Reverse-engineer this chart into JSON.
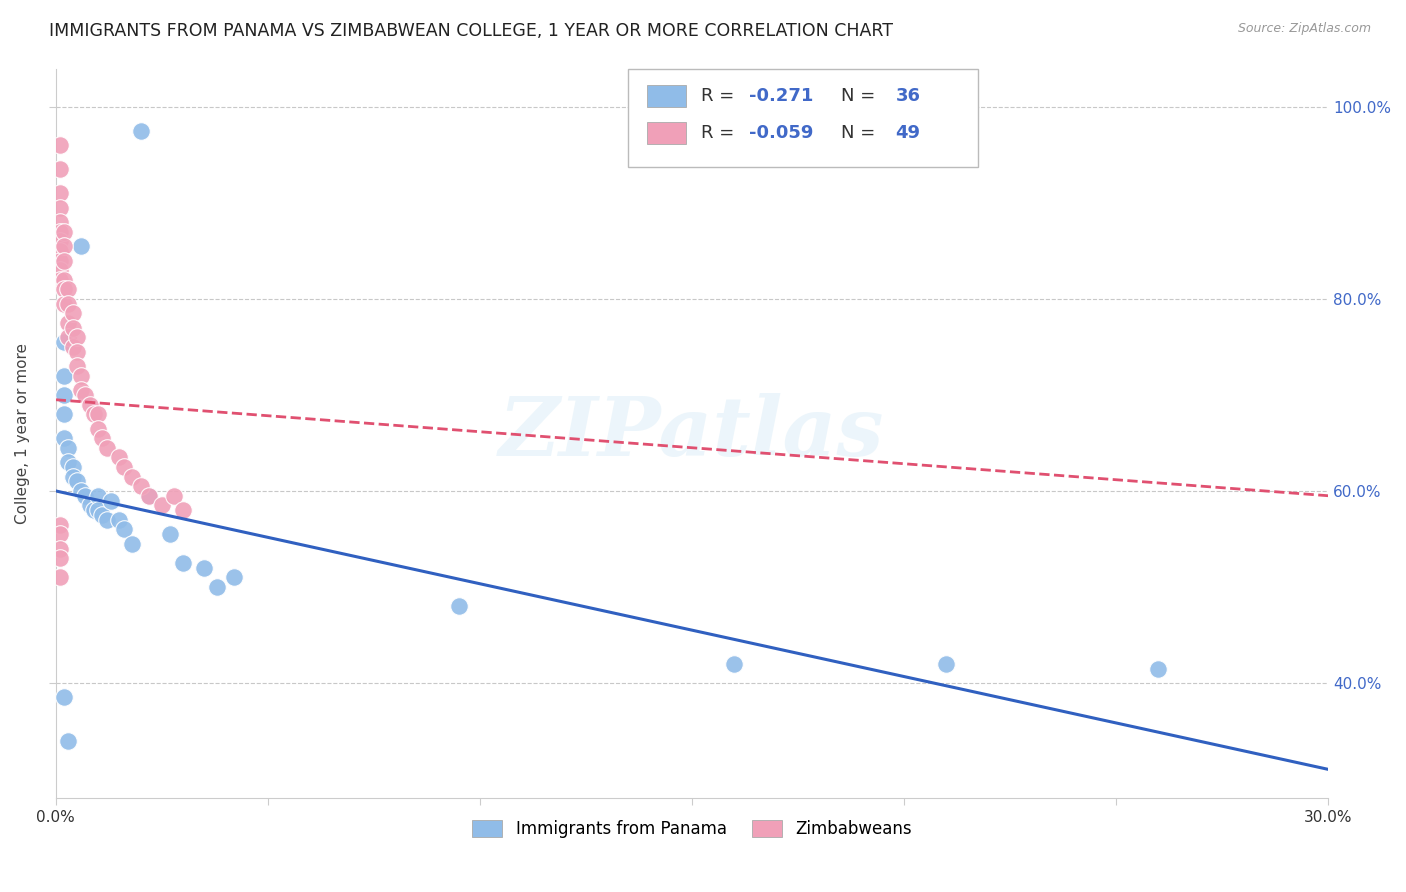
{
  "title": "IMMIGRANTS FROM PANAMA VS ZIMBABWEAN COLLEGE, 1 YEAR OR MORE CORRELATION CHART",
  "source": "Source: ZipAtlas.com",
  "ylabel": "College, 1 year or more",
  "xmin": 0.0,
  "xmax": 0.3,
  "ymin": 0.28,
  "ymax": 1.04,
  "xticks": [
    0.0,
    0.05,
    0.1,
    0.15,
    0.2,
    0.25,
    0.3
  ],
  "xtick_labels": [
    "0.0%",
    "",
    "",
    "",
    "",
    "",
    "30.0%"
  ],
  "yticks": [
    0.4,
    0.6,
    0.8,
    1.0
  ],
  "ytick_labels": [
    "40.0%",
    "60.0%",
    "80.0%",
    "100.0%"
  ],
  "legend_label1": "Immigrants from Panama",
  "legend_label2": "Zimbabweans",
  "blue_R_str": "-0.271",
  "blue_N_str": "36",
  "pink_R_str": "-0.059",
  "pink_N_str": "49",
  "blue_color": "#90bce8",
  "pink_color": "#f0a0b8",
  "blue_line_color": "#3060c0",
  "pink_line_color": "#e05070",
  "background_color": "#ffffff",
  "grid_color": "#c8c8c8",
  "title_fontsize": 12.5,
  "axis_label_fontsize": 11,
  "tick_fontsize": 11,
  "watermark": "ZIPatlas",
  "blue_scatter_x": [
    0.02,
    0.006,
    0.002,
    0.002,
    0.002,
    0.002,
    0.002,
    0.003,
    0.003,
    0.004,
    0.004,
    0.005,
    0.006,
    0.007,
    0.008,
    0.009,
    0.01,
    0.01,
    0.011,
    0.012,
    0.013,
    0.015,
    0.016,
    0.018,
    0.022,
    0.027,
    0.03,
    0.035,
    0.038,
    0.042,
    0.095,
    0.16,
    0.21,
    0.26,
    0.002,
    0.003
  ],
  "blue_scatter_y": [
    0.975,
    0.855,
    0.755,
    0.72,
    0.7,
    0.68,
    0.655,
    0.645,
    0.63,
    0.625,
    0.615,
    0.61,
    0.6,
    0.595,
    0.585,
    0.58,
    0.595,
    0.58,
    0.575,
    0.57,
    0.59,
    0.57,
    0.56,
    0.545,
    0.595,
    0.555,
    0.525,
    0.52,
    0.5,
    0.51,
    0.48,
    0.42,
    0.42,
    0.415,
    0.385,
    0.34
  ],
  "pink_scatter_x": [
    0.001,
    0.001,
    0.001,
    0.001,
    0.001,
    0.001,
    0.001,
    0.001,
    0.001,
    0.001,
    0.001,
    0.002,
    0.002,
    0.002,
    0.002,
    0.002,
    0.002,
    0.003,
    0.003,
    0.003,
    0.003,
    0.004,
    0.004,
    0.004,
    0.005,
    0.005,
    0.005,
    0.006,
    0.006,
    0.007,
    0.008,
    0.009,
    0.01,
    0.01,
    0.011,
    0.012,
    0.015,
    0.016,
    0.018,
    0.02,
    0.022,
    0.025,
    0.028,
    0.03,
    0.001,
    0.001,
    0.001,
    0.001,
    0.001
  ],
  "pink_scatter_y": [
    0.96,
    0.935,
    0.91,
    0.895,
    0.88,
    0.87,
    0.86,
    0.85,
    0.84,
    0.83,
    0.82,
    0.87,
    0.855,
    0.84,
    0.82,
    0.81,
    0.795,
    0.81,
    0.795,
    0.775,
    0.76,
    0.785,
    0.77,
    0.75,
    0.76,
    0.745,
    0.73,
    0.72,
    0.705,
    0.7,
    0.69,
    0.68,
    0.68,
    0.665,
    0.655,
    0.645,
    0.635,
    0.625,
    0.615,
    0.605,
    0.595,
    0.585,
    0.595,
    0.58,
    0.565,
    0.555,
    0.54,
    0.53,
    0.51
  ],
  "blue_trendline_x0": 0.0,
  "blue_trendline_x1": 0.3,
  "blue_trendline_y0": 0.6,
  "blue_trendline_y1": 0.31,
  "pink_trendline_x0": 0.0,
  "pink_trendline_x1": 0.3,
  "pink_trendline_y0": 0.695,
  "pink_trendline_y1": 0.595
}
